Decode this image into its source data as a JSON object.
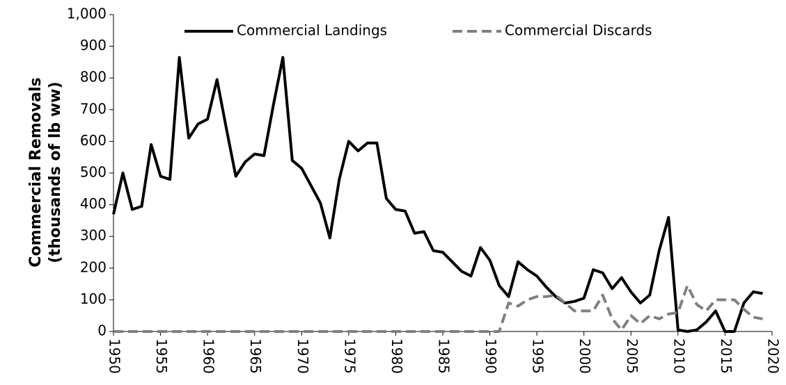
{
  "chart_data": {
    "type": "line",
    "ylabel": [
      "Commercial Removals",
      "(thousands of lb ww)"
    ],
    "x": [
      1950,
      1951,
      1952,
      1953,
      1954,
      1955,
      1956,
      1957,
      1958,
      1959,
      1960,
      1961,
      1962,
      1963,
      1964,
      1965,
      1966,
      1967,
      1968,
      1969,
      1970,
      1971,
      1972,
      1973,
      1974,
      1975,
      1976,
      1977,
      1978,
      1979,
      1980,
      1981,
      1982,
      1983,
      1984,
      1985,
      1986,
      1987,
      1988,
      1989,
      1990,
      1991,
      1992,
      1993,
      1994,
      1995,
      1996,
      1997,
      1998,
      1999,
      2000,
      2001,
      2002,
      2003,
      2004,
      2005,
      2006,
      2007,
      2008,
      2009,
      2010,
      2011,
      2012,
      2013,
      2014,
      2015,
      2016,
      2017,
      2018,
      2019
    ],
    "series": [
      {
        "name": "Commercial Landings",
        "color": "#000000",
        "dash": false,
        "values": [
          370,
          500,
          385,
          395,
          590,
          490,
          480,
          865,
          610,
          655,
          670,
          795,
          640,
          490,
          535,
          560,
          555,
          715,
          865,
          540,
          515,
          460,
          405,
          295,
          480,
          600,
          570,
          595,
          595,
          420,
          385,
          380,
          310,
          315,
          255,
          250,
          220,
          190,
          175,
          265,
          225,
          145,
          110,
          220,
          195,
          175,
          140,
          110,
          90,
          95,
          105,
          195,
          185,
          135,
          170,
          125,
          90,
          115,
          255,
          360,
          5,
          0,
          5,
          30,
          65,
          0,
          0,
          90,
          125,
          120
        ]
      },
      {
        "name": "Commercial Discards",
        "color": "#808080",
        "dash": true,
        "values": [
          0,
          0,
          0,
          0,
          0,
          0,
          0,
          0,
          0,
          0,
          0,
          0,
          0,
          0,
          0,
          0,
          0,
          0,
          0,
          0,
          0,
          0,
          0,
          0,
          0,
          0,
          0,
          0,
          0,
          0,
          0,
          0,
          0,
          0,
          0,
          0,
          0,
          0,
          0,
          0,
          0,
          0,
          90,
          80,
          100,
          110,
          110,
          115,
          90,
          65,
          65,
          65,
          115,
          40,
          5,
          50,
          25,
          50,
          40,
          55,
          60,
          145,
          85,
          65,
          100,
          100,
          100,
          70,
          45,
          40
        ]
      }
    ],
    "xlim": [
      1950,
      2020
    ],
    "xticks": [
      1950,
      1955,
      1960,
      1965,
      1970,
      1975,
      1980,
      1985,
      1990,
      1995,
      2000,
      2005,
      2010,
      2015,
      2020
    ],
    "ylim": [
      0,
      1000
    ],
    "yticks": [
      0,
      100,
      200,
      300,
      400,
      500,
      600,
      700,
      800,
      900,
      {
        "value": 1000,
        "label": "1,000"
      }
    ],
    "grid": false,
    "legend": "top"
  }
}
